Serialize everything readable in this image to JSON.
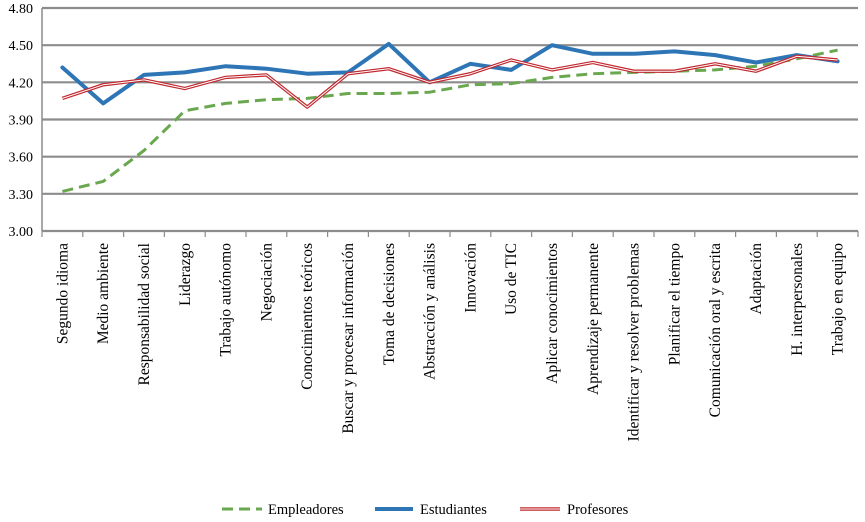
{
  "chart_data": {
    "type": "line",
    "ylim": [
      3.0,
      4.8
    ],
    "yticks": [
      "3.00",
      "3.30",
      "3.60",
      "3.90",
      "4.20",
      "4.50",
      "4.80"
    ],
    "grid": true,
    "legend_position": "bottom",
    "categories": [
      "Segundo idioma",
      "Medio ambiente",
      "Responsabilidad social",
      "Liderazgo",
      "Trabajo autónomo",
      "Negociación",
      "Conocimientos teóricos",
      "Buscar y procesar información",
      "Toma de decisiones",
      "Abstracción y análisis",
      "Innovación",
      "Uso de TIC",
      "Aplicar conocimientos",
      "Aprendizaje permanente",
      "Identificar y resolver problemas",
      "Planificar el tiempo",
      "Comunicación oral y escrita",
      "Adaptación",
      "H. interpersonales",
      "Trabajo en equipo"
    ],
    "series": [
      {
        "name": "Empleadores",
        "color": "#6aa84f",
        "style": "dashed",
        "values": [
          3.32,
          3.4,
          3.65,
          3.97,
          4.03,
          4.06,
          4.07,
          4.11,
          4.11,
          4.12,
          4.18,
          4.19,
          4.24,
          4.27,
          4.28,
          4.29,
          4.3,
          4.33,
          4.39,
          4.46
        ]
      },
      {
        "name": "Estudiantes",
        "color": "#2e75b6",
        "style": "solid-thick",
        "values": [
          4.32,
          4.03,
          4.26,
          4.28,
          4.33,
          4.31,
          4.27,
          4.28,
          4.51,
          4.2,
          4.35,
          4.3,
          4.5,
          4.43,
          4.43,
          4.45,
          4.42,
          4.36,
          4.42,
          4.37
        ]
      },
      {
        "name": "Profesores",
        "color": "#c0282e",
        "style": "double-thin",
        "values": [
          4.07,
          4.18,
          4.22,
          4.15,
          4.24,
          4.26,
          4.0,
          4.27,
          4.31,
          4.2,
          4.27,
          4.38,
          4.3,
          4.36,
          4.29,
          4.29,
          4.35,
          4.29,
          4.41,
          4.38
        ]
      }
    ]
  }
}
